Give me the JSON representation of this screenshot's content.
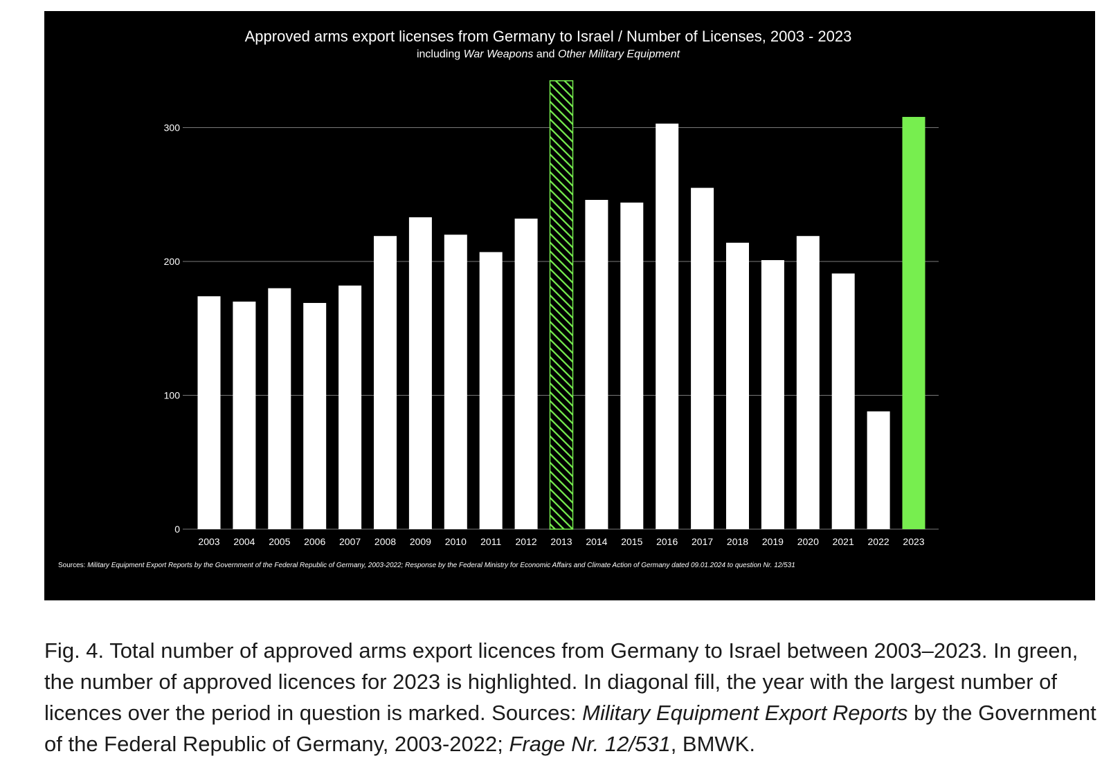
{
  "chart_data": {
    "type": "bar",
    "title": "Approved arms export licenses from Germany to Israel / Number of Licenses, 2003 - 2023",
    "subtitle_parts": [
      {
        "text": "including ",
        "italic": false
      },
      {
        "text": "War Weapons",
        "italic": true
      },
      {
        "text": " and ",
        "italic": false
      },
      {
        "text": "Other Military Equipment",
        "italic": true
      }
    ],
    "categories": [
      "2003",
      "2004",
      "2005",
      "2006",
      "2007",
      "2008",
      "2009",
      "2010",
      "2011",
      "2012",
      "2013",
      "2014",
      "2015",
      "2016",
      "2017",
      "2018",
      "2019",
      "2020",
      "2021",
      "2022",
      "2023"
    ],
    "values": [
      174,
      170,
      180,
      169,
      182,
      219,
      233,
      220,
      207,
      232,
      335,
      246,
      244,
      303,
      255,
      214,
      201,
      219,
      191,
      88,
      308
    ],
    "bar_styles": [
      "plain",
      "plain",
      "plain",
      "plain",
      "plain",
      "plain",
      "plain",
      "plain",
      "plain",
      "plain",
      "hatched",
      "plain",
      "plain",
      "plain",
      "plain",
      "plain",
      "plain",
      "plain",
      "plain",
      "plain",
      "highlight"
    ],
    "y_ticks": [
      0,
      100,
      200,
      300
    ],
    "ylim": [
      0,
      350
    ],
    "xlabel": "",
    "ylabel": "",
    "grid": true,
    "source_label": "Sources: ",
    "source_text": "Military Equipment Export Reports by the Government of the Federal Republic of Germany, 2003-2022; Response by the Federal Ministry for Economic Affairs and Climate Action of Germany dated 09.01.2024 to question Nr. 12/531",
    "colors": {
      "background": "#000000",
      "bar": "#ffffff",
      "highlight": "#77ee4f",
      "hatch": "#77ee4f",
      "grid": "#7a7a7a",
      "text": "#ffffff"
    }
  },
  "caption": {
    "part1": "Fig. 4.  Total number of approved arms export licences from Germany to Israel between 2003–2023. In green, the number of approved licences for 2023 is highlighted. In diagonal fill, the year with the largest number of licences over the period in question is marked. Sources: ",
    "part2_italic": "Military Equipment Export Reports",
    "part3": " by the Government of the Federal Republic of Germany, 2003-2022; ",
    "part4_italic": "Frage Nr. 12/531",
    "part5": ", BMWK."
  }
}
